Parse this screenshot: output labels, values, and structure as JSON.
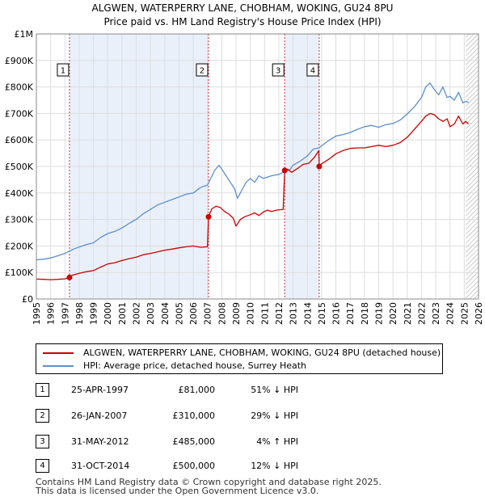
{
  "title_line1": "ALGWEN, WATERPERRY LANE, CHOBHAM, WOKING, GU24 8PU",
  "title_line2": "Price paid vs. HM Land Registry's House Price Index (HPI)",
  "colors": {
    "property": "#cc0000",
    "hpi": "#5b8fd0",
    "grid": "#dddddd",
    "shade": "#eaf0fa",
    "vline": "#cc3333"
  },
  "legend": {
    "property_label": "ALGWEN, WATERPERRY LANE, CHOBHAM, WOKING, GU24 8PU (detached house)",
    "hpi_label": "HPI: Average price, detached house, Surrey Heath"
  },
  "transactions": [
    {
      "num": "1",
      "date": "25-APR-1997",
      "price": "£81,000",
      "hpi": "51% ↓ HPI"
    },
    {
      "num": "2",
      "date": "26-JAN-2007",
      "price": "£310,000",
      "hpi": "29% ↓ HPI"
    },
    {
      "num": "3",
      "date": "31-MAY-2012",
      "price": "£485,000",
      "hpi": "4% ↑ HPI"
    },
    {
      "num": "4",
      "date": "31-OCT-2014",
      "price": "£500,000",
      "hpi": "12% ↓ HPI"
    }
  ],
  "footer_line1": "Contains HM Land Registry data © Crown copyright and database right 2025.",
  "footer_line2": "This data is licensed under the Open Government Licence v3.0.",
  "chart_data": {
    "type": "line",
    "title": "ALGWEN, WATERPERRY LANE, CHOBHAM, WOKING, GU24 8PU — Price paid vs. HM Land Registry's House Price Index (HPI)",
    "xlim": [
      1995,
      2026
    ],
    "ylim": [
      0,
      1000000
    ],
    "x_ticks": [
      1995,
      1996,
      1997,
      1998,
      1999,
      2000,
      2001,
      2002,
      2003,
      2004,
      2005,
      2006,
      2007,
      2008,
      2009,
      2010,
      2011,
      2012,
      2013,
      2014,
      2015,
      2016,
      2017,
      2018,
      2019,
      2020,
      2021,
      2022,
      2023,
      2024,
      2025,
      2026
    ],
    "y_ticks": [
      {
        "value": 0,
        "label": "£0"
      },
      {
        "value": 100000,
        "label": "£100K"
      },
      {
        "value": 200000,
        "label": "£200K"
      },
      {
        "value": 300000,
        "label": "£300K"
      },
      {
        "value": 400000,
        "label": "£400K"
      },
      {
        "value": 500000,
        "label": "£500K"
      },
      {
        "value": 600000,
        "label": "£600K"
      },
      {
        "value": 700000,
        "label": "£700K"
      },
      {
        "value": 800000,
        "label": "£800K"
      },
      {
        "value": 900000,
        "label": "£900K"
      },
      {
        "value": 1000000,
        "label": "£1M"
      }
    ],
    "hatch_from": 2025.1,
    "series": [
      {
        "name": "HPI: Average price, detached house, Surrey Heath",
        "color": "#5b8fd0",
        "x": [
          1995,
          1995.5,
          1996,
          1996.5,
          1997,
          1997.3,
          1997.6,
          1998,
          1998.5,
          1999,
          1999.5,
          2000,
          2000.5,
          2001,
          2001.5,
          2002,
          2002.5,
          2003,
          2003.5,
          2004,
          2004.5,
          2005,
          2005.5,
          2006,
          2006.5,
          2007,
          2007.5,
          2007.8,
          2008,
          2008.3,
          2008.6,
          2008.9,
          2009.1,
          2009.4,
          2009.7,
          2010,
          2010.3,
          2010.6,
          2010.9,
          2011.2,
          2011.5,
          2011.8,
          2012,
          2012.4,
          2012.8,
          2013,
          2013.5,
          2014,
          2014.4,
          2014.8,
          2015,
          2015.5,
          2016,
          2016.5,
          2017,
          2017.5,
          2018,
          2018.5,
          2019,
          2019.5,
          2020,
          2020.5,
          2021,
          2021.5,
          2022,
          2022.3,
          2022.6,
          2022.9,
          2023.2,
          2023.5,
          2023.8,
          2024,
          2024.3,
          2024.6,
          2024.9,
          2025.1,
          2025.3
        ],
        "values": [
          148000,
          150000,
          155000,
          163000,
          172000,
          180000,
          188000,
          196000,
          205000,
          212000,
          232000,
          247000,
          255000,
          268000,
          285000,
          300000,
          322000,
          338000,
          355000,
          365000,
          375000,
          385000,
          395000,
          400000,
          420000,
          430000,
          485000,
          505000,
          490000,
          465000,
          440000,
          415000,
          380000,
          410000,
          440000,
          455000,
          440000,
          465000,
          455000,
          460000,
          465000,
          468000,
          470000,
          480000,
          490000,
          505000,
          520000,
          540000,
          565000,
          570000,
          578000,
          598000,
          615000,
          620000,
          628000,
          640000,
          650000,
          655000,
          648000,
          658000,
          662000,
          675000,
          698000,
          725000,
          760000,
          800000,
          815000,
          790000,
          770000,
          800000,
          760000,
          765000,
          750000,
          780000,
          740000,
          745000,
          742000
        ]
      },
      {
        "name": "ALGWEN, WATERPERRY LANE, CHOBHAM, WOKING, GU24 8PU (detached house)",
        "color": "#cc0000",
        "x": [
          1995,
          1995.5,
          1996,
          1996.5,
          1997,
          1997.32,
          1997.5,
          1998,
          1998.5,
          1999,
          1999.5,
          2000,
          2000.5,
          2001,
          2001.5,
          2002,
          2002.5,
          2003,
          2003.5,
          2004,
          2004.5,
          2005,
          2005.5,
          2006,
          2006.5,
          2007.0,
          2007.07,
          2007.3,
          2007.6,
          2007.9,
          2008.2,
          2008.5,
          2008.8,
          2009.0,
          2009.3,
          2009.6,
          2010,
          2010.3,
          2010.6,
          2010.9,
          2011.2,
          2011.5,
          2011.8,
          2012.3,
          2012.41,
          2012.6,
          2012.9,
          2013.3,
          2013.7,
          2014.1,
          2014.5,
          2014.8,
          2014.83,
          2015,
          2015.5,
          2016,
          2016.5,
          2017,
          2017.5,
          2018,
          2018.5,
          2019,
          2019.5,
          2020,
          2020.5,
          2021,
          2021.5,
          2022,
          2022.3,
          2022.6,
          2022.9,
          2023.2,
          2023.5,
          2023.8,
          2024,
          2024.3,
          2024.6,
          2024.9,
          2025.1,
          2025.3
        ],
        "values": [
          75000,
          74000,
          73000,
          74000,
          76000,
          81000,
          89000,
          97000,
          103000,
          107000,
          120000,
          132000,
          137000,
          145000,
          152000,
          158000,
          167000,
          172000,
          178000,
          184000,
          188000,
          193000,
          197000,
          200000,
          195000,
          197000,
          310000,
          340000,
          350000,
          345000,
          330000,
          320000,
          305000,
          275000,
          300000,
          310000,
          318000,
          325000,
          315000,
          328000,
          335000,
          330000,
          335000,
          338000,
          485000,
          490000,
          478000,
          492000,
          508000,
          512000,
          535000,
          560000,
          500000,
          510000,
          527000,
          548000,
          560000,
          568000,
          570000,
          570000,
          575000,
          580000,
          575000,
          580000,
          590000,
          610000,
          640000,
          670000,
          690000,
          700000,
          695000,
          680000,
          670000,
          680000,
          650000,
          660000,
          690000,
          660000,
          670000,
          660000
        ]
      }
    ],
    "sales": [
      {
        "label": "1",
        "x": 1997.32,
        "value": 81000
      },
      {
        "label": "2",
        "x": 2007.07,
        "value": 310000
      },
      {
        "label": "3",
        "x": 2012.41,
        "value": 485000
      },
      {
        "label": "4",
        "x": 2014.83,
        "value": 500000
      }
    ]
  }
}
